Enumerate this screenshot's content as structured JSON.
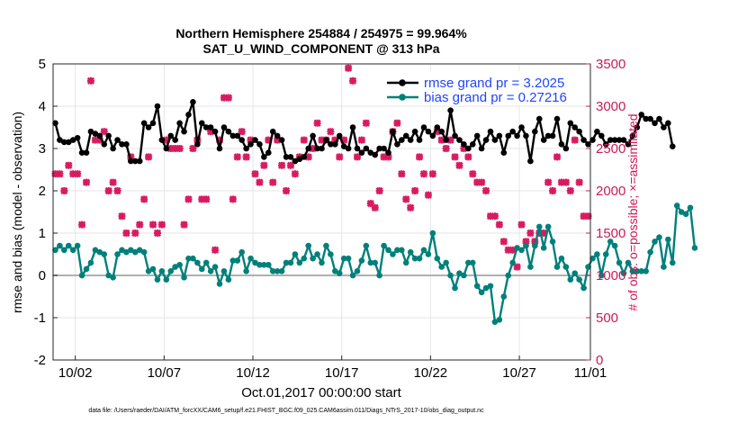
{
  "chart_data": {
    "type": "line",
    "title_line1": "Northern Hemisphere 254884 / 254975 = 99.964%",
    "title_line2": "SAT_U_WIND_COMPONENT @ 313 hPa",
    "xlabel": "Oct.01,2017 00:00:00 start",
    "ylabel_left": "rmse and bias (model - observation)",
    "ylabel_right": "# of obs: o=possible; ×=assimilated",
    "footer": "data file: /Users/raeder/DAI/ATM_forcXX/CAM6_setup/f.e21.FHIST_BGC.f09_025.CAM6assim.011/Diags_NTrS_2017-10/obs_diag_output.nc",
    "xlim": [
      0.75,
      31.0
    ],
    "ylim_left": [
      -2,
      5
    ],
    "ylim_right": [
      0,
      3500
    ],
    "x_tick_values": [
      2,
      7,
      12,
      17,
      22,
      27,
      32
    ],
    "x_tick_labels": [
      "10/02",
      "10/07",
      "10/12",
      "10/17",
      "10/22",
      "10/27",
      "11/01"
    ],
    "y_left_ticks": [
      -2,
      -1,
      0,
      1,
      2,
      3,
      4,
      5
    ],
    "y_left_tick_labels": [
      "-2",
      "-1",
      "0",
      "1",
      "2",
      "3",
      "4",
      "5"
    ],
    "y_right_ticks": [
      0,
      500,
      1000,
      1500,
      2000,
      2500,
      3000,
      3500
    ],
    "y_right_tick_labels": [
      "0",
      "500",
      "1000",
      "1500",
      "2000",
      "2500",
      "3000",
      "3500"
    ],
    "zero_line": 0,
    "legend_position": "top-right",
    "x_start": 0.875,
    "x_step": 0.25,
    "series": [
      {
        "name": "rmse grand pr = 3.2025",
        "color": "#000000",
        "marker": "circle",
        "axis": "left",
        "values": [
          3.6,
          3.2,
          3.15,
          3.15,
          3.2,
          3.25,
          2.9,
          2.9,
          3.4,
          3.35,
          3.3,
          3.1,
          3.3,
          3.0,
          3.2,
          3.1,
          3.1,
          2.7,
          2.7,
          2.7,
          3.6,
          3.5,
          3.6,
          4.0,
          3.2,
          3.0,
          3.3,
          3.2,
          3.6,
          3.4,
          3.8,
          4.1,
          3.1,
          3.6,
          3.5,
          3.5,
          3.4,
          3.0,
          3.5,
          3.4,
          3.3,
          3.3,
          3.2,
          3.0,
          3.1,
          3.2,
          3.1,
          2.8,
          2.9,
          3.4,
          3.3,
          3.2,
          2.8,
          2.8,
          2.7,
          2.75,
          2.8,
          3.0,
          3.3,
          3.0,
          3.0,
          3.2,
          3.1,
          3.1,
          3.3,
          3.05,
          3.0,
          3.5,
          3.0,
          2.9,
          3.0,
          2.9,
          2.85,
          3.0,
          3.0,
          2.9,
          3.4,
          3.1,
          3.2,
          3.3,
          3.2,
          3.4,
          3.2,
          3.5,
          3.4,
          3.3,
          3.5,
          3.4,
          3.2,
          3.9,
          3.3,
          3.2,
          3.1,
          3.0,
          3.1,
          3.3,
          3.0,
          3.2,
          3.4,
          3.2,
          3.3,
          2.9,
          3.3,
          3.4,
          3.3,
          3.5,
          3.3,
          2.7,
          3.4,
          3.7,
          3.2,
          3.3,
          3.3,
          3.7,
          3.1,
          3.0,
          3.6,
          3.5,
          3.4,
          3.2,
          3.1,
          3.2,
          3.4,
          3.3,
          3.1,
          3.2,
          3.2,
          3.2,
          3.2,
          3.1,
          3.3,
          3.5,
          3.8,
          3.7,
          3.7,
          3.6,
          3.7,
          3.5,
          3.6,
          3.05
        ]
      },
      {
        "name": "bias grand pr = 0.27216",
        "color": "#00807a",
        "marker": "circle",
        "axis": "left",
        "values": [
          0.6,
          0.7,
          0.6,
          0.7,
          0.6,
          0.7,
          0.0,
          0.15,
          0.3,
          0.6,
          0.55,
          0.5,
          0.0,
          -0.05,
          0.5,
          0.6,
          0.55,
          0.6,
          0.55,
          0.6,
          0.55,
          0.1,
          0.15,
          -0.1,
          0.1,
          -0.1,
          0.1,
          0.2,
          0.25,
          -0.05,
          0.4,
          0.4,
          0.3,
          0.15,
          0.3,
          0.1,
          0.2,
          -0.2,
          0.1,
          -0.1,
          0.35,
          0.35,
          0.55,
          0.1,
          0.4,
          0.3,
          0.25,
          0.25,
          0.25,
          0.1,
          0.1,
          0.1,
          0.3,
          0.3,
          0.5,
          0.3,
          0.4,
          0.7,
          0.4,
          0.5,
          0.3,
          0.7,
          0.5,
          0.1,
          0.05,
          0.4,
          0.4,
          0.0,
          0.1,
          0.35,
          0.7,
          0.3,
          0.3,
          0.0,
          0.7,
          0.6,
          0.5,
          0.6,
          0.6,
          0.3,
          0.55,
          0.4,
          0.4,
          0.6,
          0.5,
          1.0,
          0.4,
          0.2,
          0.3,
          0.0,
          -0.3,
          0.05,
          0.0,
          0.3,
          0.3,
          -0.25,
          -0.4,
          -0.3,
          -0.25,
          -1.1,
          -1.05,
          -0.5,
          0.0,
          0.3,
          0.65,
          0.6,
          0.7,
          0.2,
          0.7,
          1.15,
          0.65,
          1.15,
          0.8,
          0.2,
          0.4,
          0.2,
          -0.1,
          0.05,
          -0.1,
          -0.3,
          0.2,
          0.4,
          0.5,
          0.0,
          0.5,
          0.8,
          0.7,
          0.3,
          0.05,
          0.3,
          0.1,
          0.1,
          0.1,
          0.1,
          0.55,
          0.8,
          0.9,
          0.2,
          0.85,
          0.3,
          1.65,
          1.5,
          1.45,
          1.6,
          0.65
        ]
      },
      {
        "name": "",
        "color": "#d81b60",
        "marker": "x",
        "axis": "right",
        "values": [
          2200,
          2200,
          2000,
          2300,
          2200,
          2200,
          1600,
          2100,
          3300,
          2600,
          2600,
          2700,
          2000,
          2100,
          2000,
          1700,
          1500,
          2400,
          1500,
          1600,
          1900,
          2400,
          1600,
          1500,
          1600,
          2600,
          2500,
          2500,
          2500,
          1600,
          1900,
          2500,
          2600,
          1900,
          1900,
          2700,
          1300,
          2600,
          3100,
          3100,
          1900,
          2400,
          2700,
          2400,
          2600,
          2200,
          2100,
          2300,
          2600,
          2100,
          2600,
          2300,
          2000,
          2300,
          2200,
          2400,
          2600,
          2400,
          2500,
          2800,
          2600,
          2600,
          2700,
          2600,
          2400,
          2600,
          3450,
          3300,
          2400,
          2600,
          2800,
          1850,
          1800,
          2000,
          2400,
          2400,
          2700,
          2800,
          2200,
          1900,
          1800,
          2000,
          2400,
          2200,
          1950,
          2200,
          2700,
          2600,
          2500,
          2600,
          2400,
          2300,
          2500,
          2400,
          2200,
          2100,
          2100,
          2000,
          1700,
          1700,
          1600,
          1400,
          1300,
          1300,
          1100,
          1600,
          1400,
          1500,
          1400,
          1500,
          1500,
          2100,
          2000,
          2400,
          2100,
          2100,
          2000,
          2600,
          2100,
          1700,
          1700,
          1700,
          2000,
          1500,
          1800,
          1700,
          1400,
          2300,
          2600,
          2100,
          2200,
          2400,
          2300,
          2200,
          2400,
          2500,
          2500,
          2200,
          2100,
          2000,
          2000,
          950,
          1000,
          1050,
          1100,
          1100,
          0
        ]
      }
    ]
  }
}
